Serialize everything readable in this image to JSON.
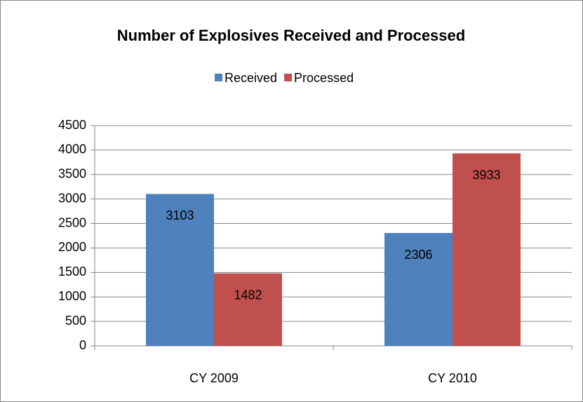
{
  "chart_data": {
    "type": "bar",
    "title": "Number of Explosives Received and Processed",
    "categories": [
      "CY 2009",
      "CY 2010"
    ],
    "series": [
      {
        "name": "Received",
        "color": "#4f81bd",
        "values": [
          3103,
          2306
        ]
      },
      {
        "name": "Processed",
        "color": "#c0504d",
        "values": [
          1482,
          3933
        ]
      }
    ],
    "ylim": [
      0,
      4500
    ],
    "yticks": [
      0,
      500,
      1000,
      1500,
      2000,
      2500,
      3000,
      3500,
      4000,
      4500
    ],
    "grid": true,
    "legend": "top",
    "data_labels": true
  }
}
